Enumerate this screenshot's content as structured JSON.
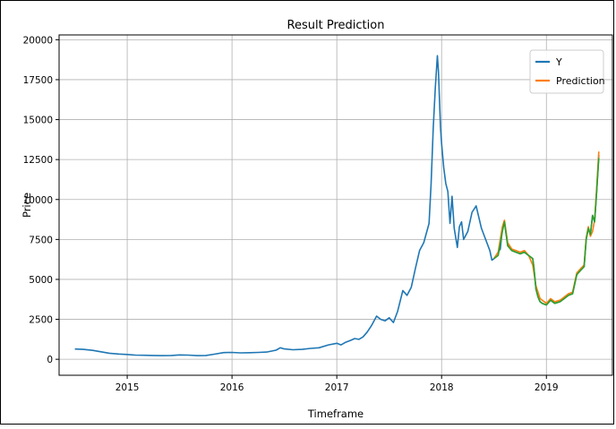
{
  "chart_data": {
    "type": "line",
    "title": "Result Prediction",
    "xlabel": "Timeframe",
    "ylabel": "Price",
    "xlim": [
      2014.35,
      2019.63
    ],
    "ylim": [
      -1000,
      20300
    ],
    "grid": true,
    "legend_position": "top-right",
    "x_ticks": [
      2015,
      2016,
      2017,
      2018,
      2019
    ],
    "x_tick_labels": [
      "2015",
      "2016",
      "2017",
      "2018",
      "2019"
    ],
    "y_ticks": [
      0,
      2500,
      5000,
      7500,
      10000,
      12500,
      15000,
      17500,
      20000
    ],
    "y_tick_labels": [
      "0",
      "2500",
      "5000",
      "7500",
      "10000",
      "12500",
      "15000",
      "17500",
      "20000"
    ],
    "series": [
      {
        "name": "Y",
        "color": "#1f77b4",
        "x": [
          2014.5,
          2014.58,
          2014.67,
          2014.75,
          2014.83,
          2014.92,
          2015.0,
          2015.08,
          2015.17,
          2015.25,
          2015.33,
          2015.42,
          2015.5,
          2015.58,
          2015.67,
          2015.75,
          2015.83,
          2015.92,
          2016.0,
          2016.08,
          2016.17,
          2016.25,
          2016.33,
          2016.42,
          2016.46,
          2016.5,
          2016.58,
          2016.67,
          2016.75,
          2016.83,
          2016.92,
          2017.0,
          2017.04,
          2017.08,
          2017.13,
          2017.17,
          2017.21,
          2017.25,
          2017.29,
          2017.33,
          2017.38,
          2017.42,
          2017.46,
          2017.5,
          2017.54,
          2017.58,
          2017.63,
          2017.67,
          2017.71,
          2017.75,
          2017.79,
          2017.83,
          2017.88,
          2017.9,
          2017.92,
          2017.94,
          2017.96,
          2017.97,
          2017.99,
          2018.0,
          2018.02,
          2018.04,
          2018.06,
          2018.08,
          2018.1,
          2018.12,
          2018.15,
          2018.17,
          2018.19,
          2018.21,
          2018.25,
          2018.29,
          2018.33,
          2018.38,
          2018.42,
          2018.46,
          2018.48,
          2018.5,
          2018.52,
          2018.54,
          2018.56,
          2018.58,
          2018.6,
          2018.63,
          2018.67,
          2018.71,
          2018.75,
          2018.79,
          2018.83,
          2018.87,
          2018.88,
          2018.9,
          2018.92,
          2018.94,
          2018.96,
          2019.0,
          2019.04,
          2019.08,
          2019.13,
          2019.17,
          2019.21,
          2019.25,
          2019.29,
          2019.33,
          2019.36,
          2019.38,
          2019.4,
          2019.42,
          2019.44,
          2019.46,
          2019.48,
          2019.5
        ],
        "y": [
          640,
          620,
          560,
          470,
          380,
          330,
          300,
          260,
          250,
          240,
          230,
          240,
          270,
          260,
          230,
          240,
          320,
          420,
          430,
          400,
          410,
          430,
          450,
          570,
          720,
          650,
          600,
          620,
          680,
          720,
          900,
          1000,
          900,
          1050,
          1180,
          1300,
          1250,
          1400,
          1700,
          2100,
          2700,
          2500,
          2400,
          2600,
          2300,
          3000,
          4300,
          4000,
          4500,
          5700,
          6800,
          7300,
          8500,
          11000,
          14500,
          17000,
          19000,
          18000,
          14500,
          13500,
          12000,
          11000,
          10500,
          8500,
          10200,
          8200,
          7000,
          8300,
          8600,
          7500,
          8000,
          9200,
          9600,
          8200,
          7500,
          6800,
          6200,
          6300,
          6500,
          6700,
          6900,
          8200,
          8600,
          7200,
          6800,
          6700,
          6600,
          6700,
          6500,
          6300,
          5800,
          4400,
          3900,
          3600,
          3500,
          3400,
          3700,
          3500,
          3600,
          3800,
          4000,
          4100,
          5300,
          5600,
          5800,
          7500,
          8200,
          7800,
          9000,
          8600,
          10500,
          12800
        ]
      },
      {
        "name": "Prediction",
        "color": "#ff7f0e",
        "x": [
          2018.5,
          2018.54,
          2018.58,
          2018.6,
          2018.63,
          2018.67,
          2018.71,
          2018.75,
          2018.79,
          2018.83,
          2018.87,
          2018.9,
          2018.94,
          2019.0,
          2019.04,
          2019.08,
          2019.13,
          2019.17,
          2019.21,
          2019.25,
          2019.29,
          2019.33,
          2019.36,
          2019.38,
          2019.4,
          2019.42,
          2019.44,
          2019.46,
          2019.48,
          2019.5
        ],
        "y": [
          6300,
          6700,
          8300,
          8700,
          7300,
          6900,
          6800,
          6700,
          6800,
          6500,
          5900,
          4600,
          3800,
          3500,
          3800,
          3600,
          3700,
          3900,
          4100,
          4200,
          5400,
          5700,
          5900,
          7600,
          8300,
          7700,
          8000,
          8700,
          10700,
          13000
        ]
      },
      {
        "color": "#2ca02c",
        "x": [
          2018.5,
          2018.54,
          2018.58,
          2018.6,
          2018.63,
          2018.67,
          2018.71,
          2018.75,
          2018.79,
          2018.83,
          2018.87,
          2018.88,
          2018.9,
          2018.92,
          2018.94,
          2018.96,
          2019.0,
          2019.04,
          2019.08,
          2019.13,
          2019.17,
          2019.21,
          2019.25,
          2019.29,
          2019.33,
          2019.36,
          2019.38,
          2019.4,
          2019.42,
          2019.44,
          2019.46,
          2019.48,
          2019.5
        ],
        "y": [
          6300,
          6500,
          8000,
          8600,
          7100,
          6800,
          6700,
          6600,
          6700,
          6500,
          6300,
          5800,
          4400,
          3900,
          3600,
          3500,
          3400,
          3700,
          3500,
          3600,
          3800,
          4000,
          4100,
          5300,
          5600,
          5800,
          7500,
          8200,
          7800,
          9000,
          8600,
          10500,
          12600
        ]
      }
    ]
  }
}
